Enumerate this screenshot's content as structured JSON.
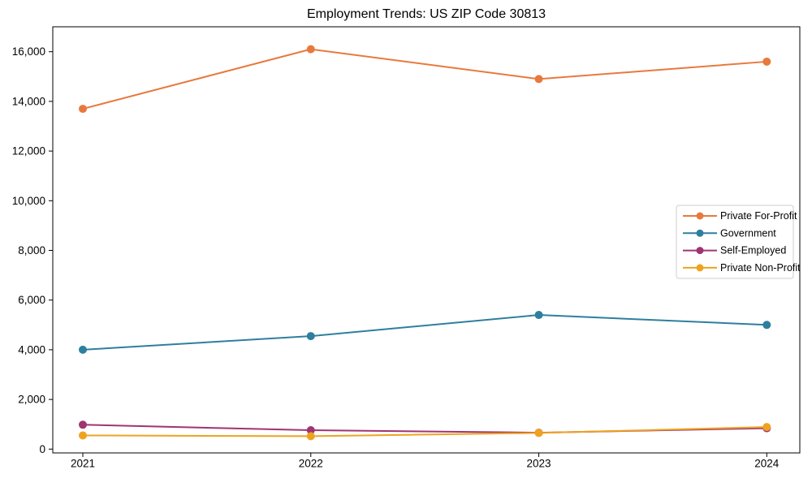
{
  "figure": {
    "background": "#ffffff",
    "text_color": "#000000"
  },
  "chart_data": {
    "type": "line",
    "title": "Employment Trends: US ZIP Code 30813",
    "xlabel": "",
    "ylabel": "",
    "x_labels": [
      "2021",
      "2022",
      "2023",
      "2024"
    ],
    "y_ticks": [
      0,
      2000,
      4000,
      6000,
      8000,
      10000,
      12000,
      14000,
      16000
    ],
    "y_tick_labels": [
      "0",
      "2,000",
      "4,000",
      "6,000",
      "8,000",
      "10,000",
      "12,000",
      "14,000",
      "16,000"
    ],
    "ylim": [
      0,
      16000
    ],
    "grid": false,
    "marker": "circle",
    "legend": {
      "position": "center-right",
      "border_color": "#cccccc",
      "background": "#ffffff"
    },
    "series": [
      {
        "name": "Private For-Profit",
        "color": "#E8793D",
        "values": [
          13700,
          16100,
          14900,
          15600
        ]
      },
      {
        "name": "Government",
        "color": "#2E7F9E",
        "values": [
          4000,
          4550,
          5400,
          5000
        ]
      },
      {
        "name": "Self-Employed",
        "color": "#A03473",
        "values": [
          980,
          760,
          660,
          840
        ]
      },
      {
        "name": "Private Non-Profit",
        "color": "#EEA320",
        "values": [
          550,
          520,
          650,
          890
        ]
      }
    ]
  }
}
